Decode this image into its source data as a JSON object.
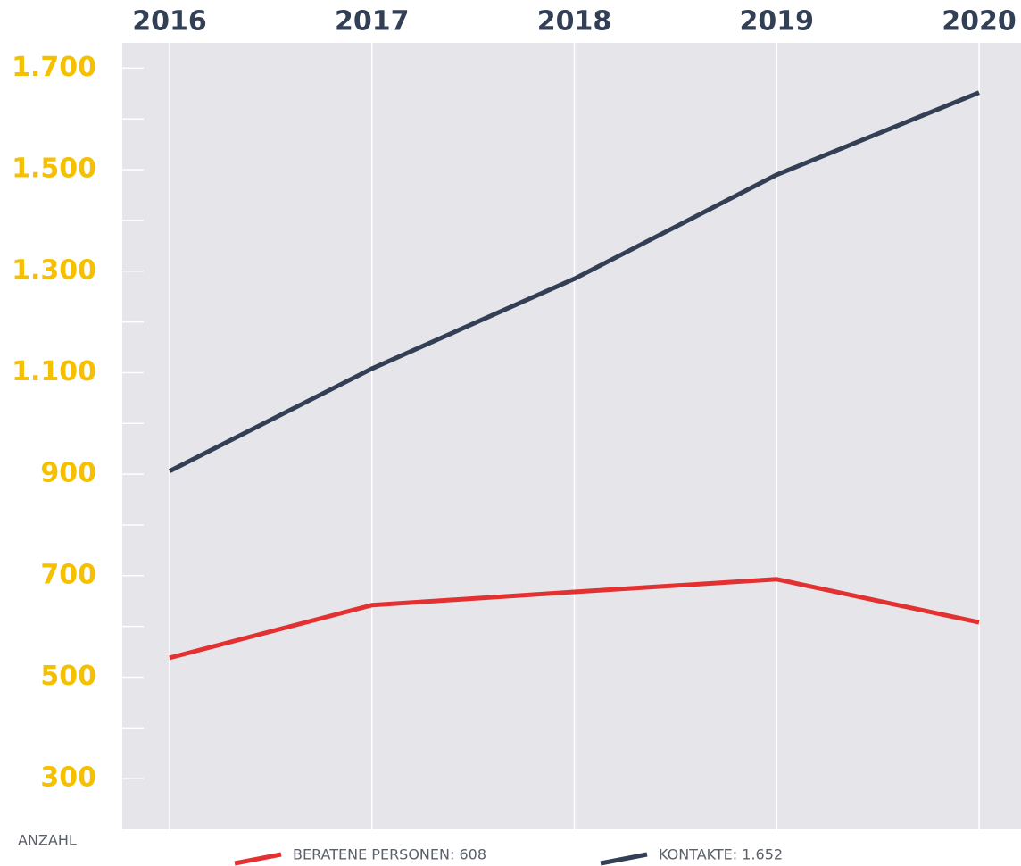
{
  "chart_data": {
    "type": "line",
    "categories": [
      "2016",
      "2017",
      "2018",
      "2019",
      "2020"
    ],
    "series": [
      {
        "name": "BERATENE PERSONEN: 608",
        "color": "#e23130",
        "values": [
          538,
          642,
          668,
          693,
          608
        ]
      },
      {
        "name": "KONTAKTE: 1.652",
        "color": "#333f55",
        "values": [
          906,
          1108,
          1285,
          1490,
          1652
        ]
      }
    ],
    "y_label": "ANZAHL",
    "ylim": [
      200,
      1750
    ],
    "yticks": [
      {
        "value": 300,
        "label": "300"
      },
      {
        "value": 500,
        "label": "500"
      },
      {
        "value": 700,
        "label": "700"
      },
      {
        "value": 900,
        "label": "900"
      },
      {
        "value": 1100,
        "label": "1.100"
      },
      {
        "value": 1300,
        "label": "1.300"
      },
      {
        "value": 1500,
        "label": "1.500"
      },
      {
        "value": 1700,
        "label": "1.700"
      }
    ],
    "yticks_minor": [
      400,
      600,
      800,
      1000,
      1200,
      1400,
      1600
    ],
    "grid": true,
    "legend": "bottom"
  }
}
